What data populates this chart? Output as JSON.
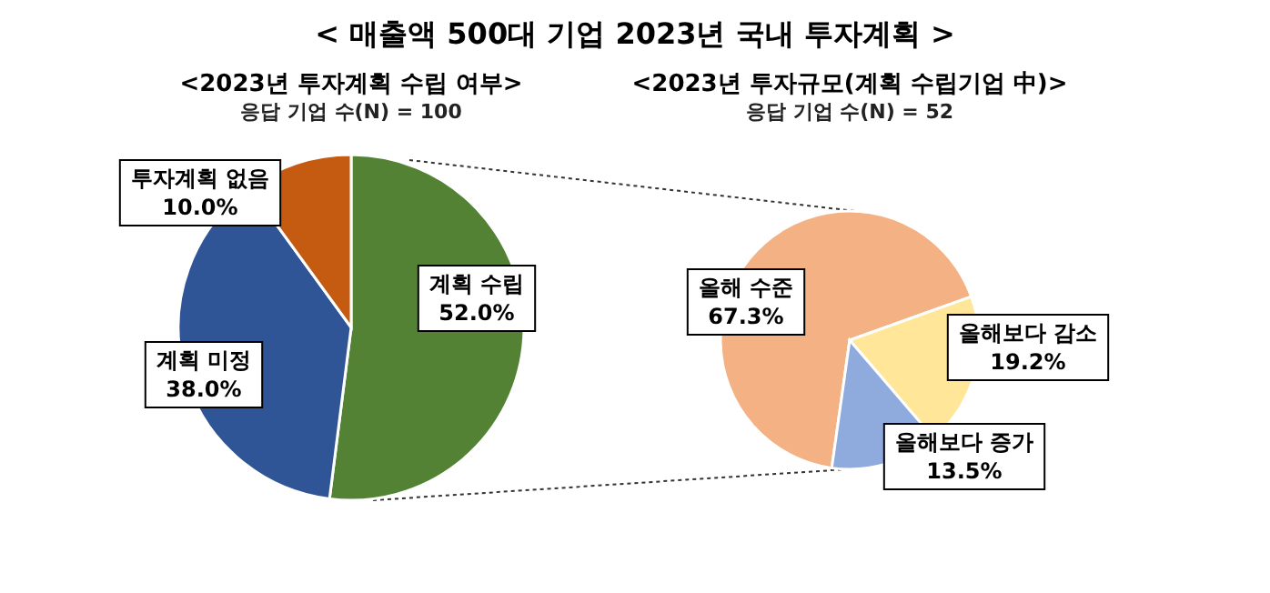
{
  "chart_data": [
    {
      "type": "pie",
      "title": "<2023년 투자계획 수립 여부>",
      "subtitle": "응답 기업 수(N) = 100",
      "annotations": [
        "< 매출액 500대 기업 2023년 국내 투자계획 >"
      ],
      "categories": [
        "계획 수립",
        "계획 미정",
        "투자계획 없음"
      ],
      "values": [
        52.0,
        38.0,
        10.0
      ],
      "colors": [
        "#548235",
        "#2f5597",
        "#c55a11"
      ],
      "value_labels": [
        "52.0%",
        "38.0%",
        "10.0%"
      ]
    },
    {
      "type": "pie",
      "title": "<2023년 투자규모(계획 수립기업 中)>",
      "subtitle": "응답 기업 수(N) = 52",
      "categories": [
        "올해 수준",
        "올해보다 감소",
        "올해보다 증가"
      ],
      "values": [
        67.3,
        19.2,
        13.5
      ],
      "colors": [
        "#f4b183",
        "#ffe699",
        "#8faadc"
      ],
      "value_labels": [
        "67.3%",
        "19.2%",
        "13.5%"
      ]
    }
  ]
}
